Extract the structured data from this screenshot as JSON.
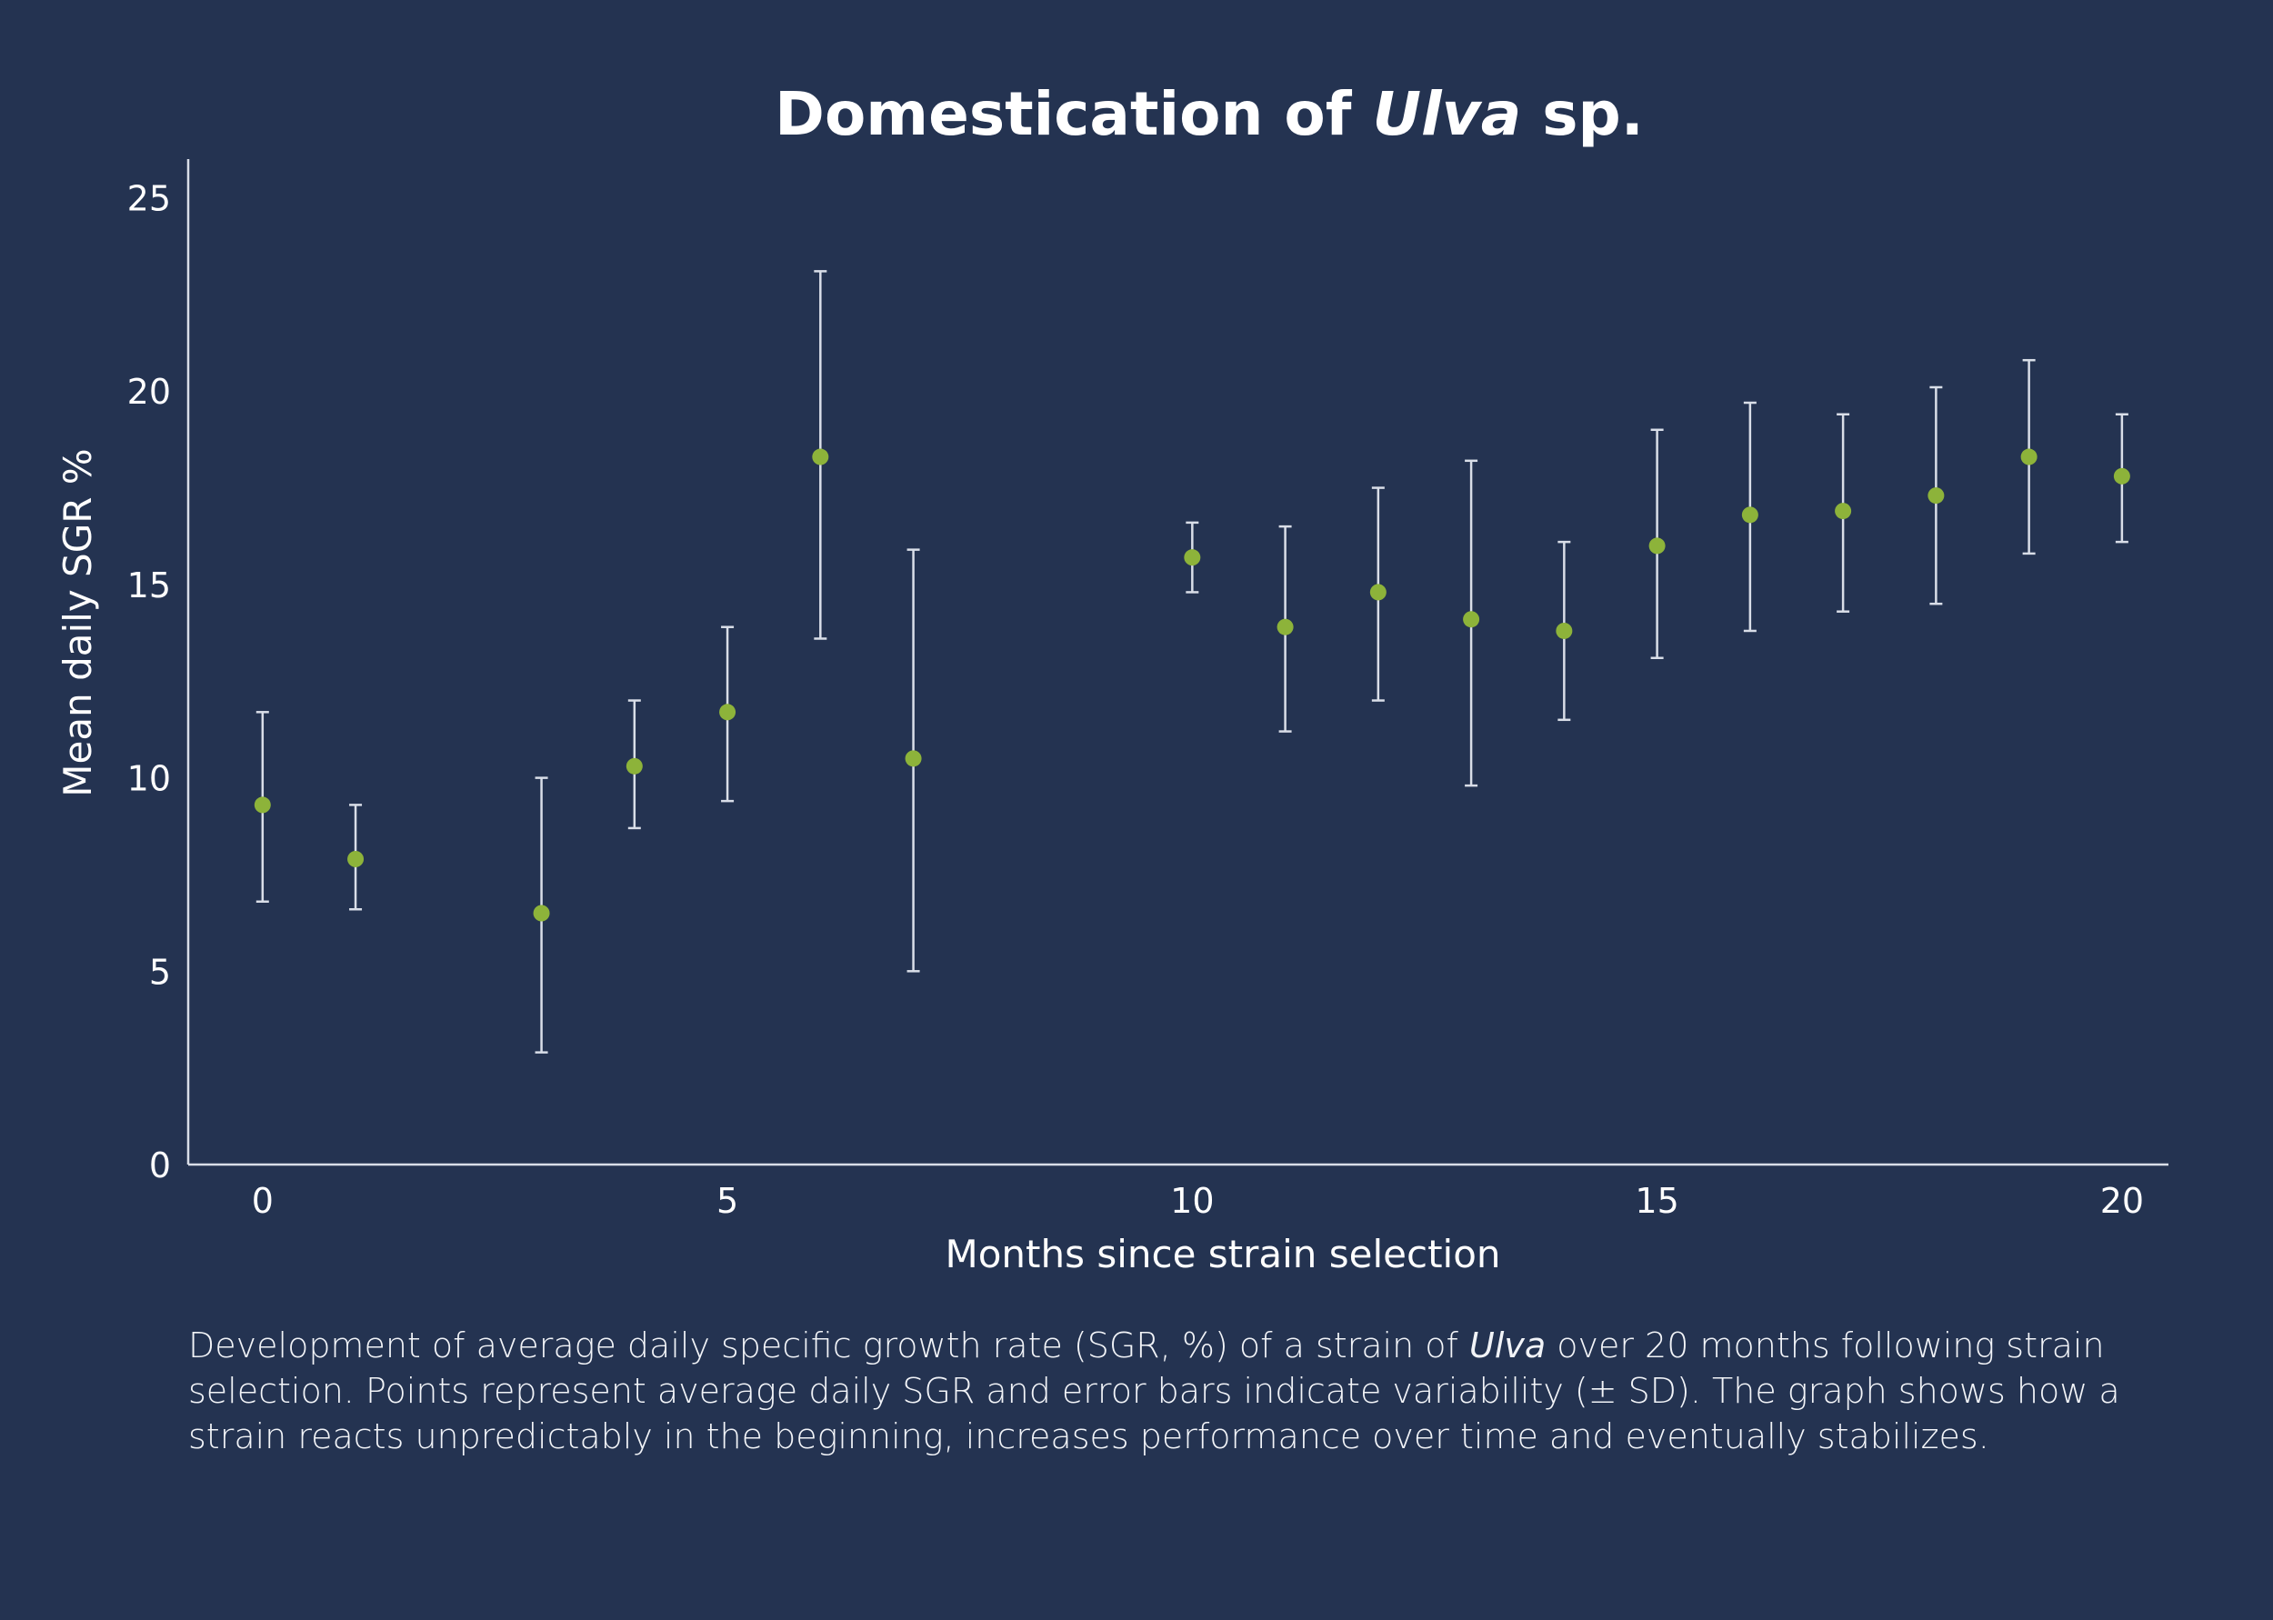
{
  "chart_data": {
    "type": "scatter",
    "title_parts": [
      "Domestication of ",
      "Ulva",
      " sp."
    ],
    "xlabel": "Months since strain selection",
    "ylabel": "Mean daily SGR %",
    "xlim": [
      -0.8,
      20.5
    ],
    "ylim": [
      0,
      26
    ],
    "xticks": [
      0,
      5,
      10,
      15,
      20
    ],
    "yticks": [
      0,
      5,
      10,
      15,
      20,
      25
    ],
    "grid": false,
    "points": [
      {
        "x": 0,
        "y": 9.3,
        "sd_low": 6.8,
        "sd_high": 11.7
      },
      {
        "x": 1,
        "y": 7.9,
        "sd_low": 6.6,
        "sd_high": 9.3
      },
      {
        "x": 3,
        "y": 6.5,
        "sd_low": 2.9,
        "sd_high": 10.0
      },
      {
        "x": 4,
        "y": 10.3,
        "sd_low": 8.7,
        "sd_high": 12.0
      },
      {
        "x": 5,
        "y": 11.7,
        "sd_low": 9.4,
        "sd_high": 13.9
      },
      {
        "x": 6,
        "y": 18.3,
        "sd_low": 13.6,
        "sd_high": 23.1
      },
      {
        "x": 7,
        "y": 10.5,
        "sd_low": 5.0,
        "sd_high": 15.9
      },
      {
        "x": 10,
        "y": 15.7,
        "sd_low": 14.8,
        "sd_high": 16.6
      },
      {
        "x": 11,
        "y": 13.9,
        "sd_low": 11.2,
        "sd_high": 16.5
      },
      {
        "x": 12,
        "y": 14.8,
        "sd_low": 12.0,
        "sd_high": 17.5
      },
      {
        "x": 13,
        "y": 14.1,
        "sd_low": 9.8,
        "sd_high": 18.2
      },
      {
        "x": 14,
        "y": 13.8,
        "sd_low": 11.5,
        "sd_high": 16.1
      },
      {
        "x": 15,
        "y": 16.0,
        "sd_low": 13.1,
        "sd_high": 19.0
      },
      {
        "x": 16,
        "y": 16.8,
        "sd_low": 13.8,
        "sd_high": 19.7
      },
      {
        "x": 17,
        "y": 16.9,
        "sd_low": 14.3,
        "sd_high": 19.4
      },
      {
        "x": 18,
        "y": 17.3,
        "sd_low": 14.5,
        "sd_high": 20.1
      },
      {
        "x": 19,
        "y": 18.3,
        "sd_low": 15.8,
        "sd_high": 20.8
      },
      {
        "x": 20,
        "y": 17.8,
        "sd_low": 16.1,
        "sd_high": 19.4
      }
    ]
  },
  "colors": {
    "background": "#243351",
    "point": "#8db33a",
    "axis": "#d9dee8",
    "text": "#ffffff"
  },
  "caption": {
    "part1": "Development of average daily specific growth rate (SGR, %) of a strain of ",
    "italic": "Ulva",
    "part2": " over 20 months following strain selection. Points represent average daily SGR and error bars indicate variability (± SD). The graph shows how a strain reacts unpredictably in the beginning, increases performance over time and eventually stabilizes."
  }
}
